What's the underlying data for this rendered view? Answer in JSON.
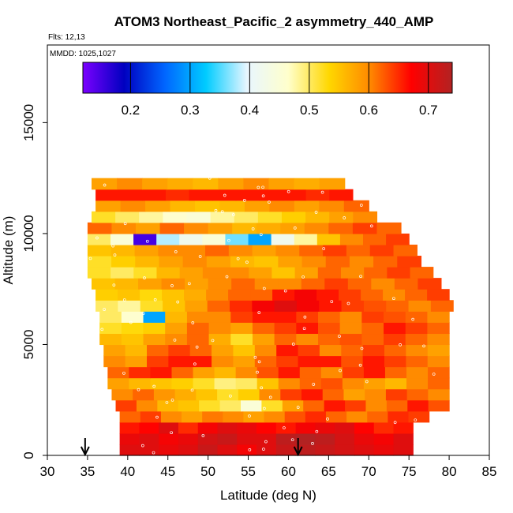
{
  "chart_data": {
    "type": "heatmap",
    "title": "ATOM3 Northeast_Pacific_2 asymmetry_440_AMP",
    "flights_label": "Flts: 12,13",
    "dates_label": "MMDD: 1025,1027",
    "xlabel": "Latitude (deg N)",
    "ylabel": "Altitude (m)",
    "xlim": [
      30,
      85
    ],
    "ylim": [
      0,
      18500
    ],
    "x_ticks": [
      30,
      35,
      40,
      45,
      50,
      55,
      60,
      65,
      70,
      75,
      80,
      85
    ],
    "y_ticks": [
      0,
      5000,
      10000,
      15000
    ],
    "colorbar": {
      "range": [
        0.12,
        0.74
      ],
      "ticks": [
        0.2,
        0.3,
        0.4,
        0.5,
        0.6,
        0.7
      ],
      "stops": [
        "#7b00ff",
        "#0000c0",
        "#0066ff",
        "#00ccff",
        "#e8f6ff",
        "#ffffcc",
        "#ffd700",
        "#ff8800",
        "#ff0000",
        "#b22222"
      ]
    },
    "bin_height_m": 500,
    "rows": [
      {
        "alt": 250,
        "lat_min": 39,
        "lat_max": 75.5,
        "values": [
          0.7,
          0.7,
          0.69,
          0.7,
          0.72,
          0.7,
          0.68,
          0.7,
          0.72,
          0.73,
          0.72,
          0.71,
          0.7,
          0.69,
          0.7
        ]
      },
      {
        "alt": 750,
        "lat_min": 39,
        "lat_max": 75.5,
        "values": [
          0.69,
          0.7,
          0.68,
          0.69,
          0.71,
          0.72,
          0.7,
          0.7,
          0.73,
          0.74,
          0.73,
          0.71,
          0.69,
          0.68,
          0.7
        ]
      },
      {
        "alt": 1250,
        "lat_min": 39,
        "lat_max": 75.5,
        "values": [
          0.66,
          0.67,
          0.7,
          0.65,
          0.68,
          0.7,
          0.69,
          0.67,
          0.66,
          0.68,
          0.69,
          0.7,
          0.67,
          0.65,
          0.66
        ]
      },
      {
        "alt": 1750,
        "lat_min": 39,
        "lat_max": 77.5,
        "values": [
          0.62,
          0.64,
          0.6,
          0.58,
          0.61,
          0.6,
          0.58,
          0.6,
          0.63,
          0.65,
          0.62,
          0.6,
          0.62,
          0.65,
          0.64
        ]
      },
      {
        "alt": 2250,
        "lat_min": 38.5,
        "lat_max": 80,
        "values": [
          0.64,
          0.6,
          0.56,
          0.55,
          0.52,
          0.5,
          0.45,
          0.52,
          0.58,
          0.62,
          0.66,
          0.64,
          0.6,
          0.62,
          0.66,
          0.63
        ]
      },
      {
        "alt": 2750,
        "lat_min": 38,
        "lat_max": 80,
        "values": [
          0.6,
          0.62,
          0.59,
          0.57,
          0.55,
          0.52,
          0.54,
          0.6,
          0.64,
          0.66,
          0.62,
          0.58,
          0.6,
          0.64,
          0.62,
          0.6
        ]
      },
      {
        "alt": 3250,
        "lat_min": 37.5,
        "lat_max": 80,
        "values": [
          0.58,
          0.56,
          0.55,
          0.54,
          0.52,
          0.49,
          0.5,
          0.55,
          0.6,
          0.62,
          0.63,
          0.6,
          0.58,
          0.56,
          0.6,
          0.62
        ]
      },
      {
        "alt": 3750,
        "lat_min": 37.5,
        "lat_max": 80,
        "values": [
          0.62,
          0.65,
          0.66,
          0.62,
          0.58,
          0.56,
          0.6,
          0.63,
          0.66,
          0.62,
          0.6,
          0.64,
          0.66,
          0.62,
          0.6,
          0.62
        ]
      },
      {
        "alt": 4250,
        "lat_min": 37,
        "lat_max": 80,
        "values": [
          0.6,
          0.58,
          0.64,
          0.66,
          0.66,
          0.6,
          0.58,
          0.62,
          0.64,
          0.66,
          0.66,
          0.63,
          0.66,
          0.64,
          0.62,
          0.6
        ]
      },
      {
        "alt": 4750,
        "lat_min": 37,
        "lat_max": 80,
        "values": [
          0.58,
          0.56,
          0.62,
          0.64,
          0.62,
          0.58,
          0.55,
          0.6,
          0.66,
          0.64,
          0.6,
          0.62,
          0.64,
          0.62,
          0.6,
          0.58
        ]
      },
      {
        "alt": 5250,
        "lat_min": 36.5,
        "lat_max": 80,
        "values": [
          0.56,
          0.55,
          0.58,
          0.6,
          0.62,
          0.57,
          0.52,
          0.58,
          0.62,
          0.6,
          0.62,
          0.63,
          0.62,
          0.64,
          0.62,
          0.6
        ]
      },
      {
        "alt": 5750,
        "lat_min": 36.5,
        "lat_max": 80,
        "values": [
          0.52,
          0.53,
          0.54,
          0.58,
          0.62,
          0.6,
          0.58,
          0.62,
          0.64,
          0.66,
          0.63,
          0.6,
          0.62,
          0.66,
          0.64,
          0.62
        ]
      },
      {
        "alt": 6250,
        "lat_min": 36.5,
        "lat_max": 80,
        "values": [
          0.5,
          0.46,
          0.3,
          0.56,
          0.6,
          0.6,
          0.64,
          0.66,
          0.66,
          0.64,
          0.62,
          0.6,
          0.64,
          0.63,
          0.62,
          0.6
        ]
      },
      {
        "alt": 6750,
        "lat_min": 36,
        "lat_max": 80.5,
        "values": [
          0.5,
          0.48,
          0.52,
          0.55,
          0.58,
          0.62,
          0.65,
          0.68,
          0.7,
          0.68,
          0.66,
          0.64,
          0.63,
          0.62,
          0.6,
          0.62
        ]
      },
      {
        "alt": 7250,
        "lat_min": 36,
        "lat_max": 80,
        "values": [
          0.54,
          0.55,
          0.53,
          0.55,
          0.57,
          0.6,
          0.62,
          0.62,
          0.66,
          0.68,
          0.66,
          0.64,
          0.62,
          0.6,
          0.62,
          0.64
        ]
      },
      {
        "alt": 7750,
        "lat_min": 35.5,
        "lat_max": 79,
        "values": [
          0.55,
          0.56,
          0.58,
          0.6,
          0.58,
          0.6,
          0.62,
          0.6,
          0.6,
          0.62,
          0.64,
          0.62,
          0.6,
          0.62,
          0.64
        ]
      },
      {
        "alt": 8250,
        "lat_min": 35,
        "lat_max": 78,
        "values": [
          0.52,
          0.5,
          0.52,
          0.56,
          0.58,
          0.6,
          0.6,
          0.58,
          0.55,
          0.58,
          0.62,
          0.6,
          0.62,
          0.64,
          0.62
        ]
      },
      {
        "alt": 8750,
        "lat_min": 35,
        "lat_max": 76.5,
        "values": [
          0.52,
          0.54,
          0.56,
          0.58,
          0.6,
          0.58,
          0.56,
          0.55,
          0.58,
          0.6,
          0.62,
          0.6,
          0.62,
          0.64
        ]
      },
      {
        "alt": 9250,
        "lat_min": 35,
        "lat_max": 76,
        "values": [
          0.55,
          0.56,
          0.58,
          0.6,
          0.6,
          0.62,
          0.6,
          0.58,
          0.6,
          0.62,
          0.64,
          0.62,
          0.64,
          0.62
        ]
      },
      {
        "alt": 9750,
        "lat_min": 35,
        "lat_max": 75,
        "values": [
          0.5,
          0.45,
          0.15,
          0.38,
          0.42,
          0.45,
          0.36,
          0.3,
          0.42,
          0.48,
          0.55,
          0.6,
          0.62,
          0.64
        ]
      },
      {
        "alt": 10250,
        "lat_min": 35,
        "lat_max": 74,
        "values": [
          0.62,
          0.6,
          0.58,
          0.62,
          0.6,
          0.58,
          0.56,
          0.57,
          0.58,
          0.6,
          0.62,
          0.64,
          0.62
        ]
      },
      {
        "alt": 10750,
        "lat_min": 35.5,
        "lat_max": 71,
        "values": [
          0.52,
          0.5,
          0.48,
          0.46,
          0.45,
          0.48,
          0.5,
          0.52,
          0.54,
          0.56,
          0.58,
          0.6
        ]
      },
      {
        "alt": 11250,
        "lat_min": 36,
        "lat_max": 70,
        "values": [
          0.58,
          0.6,
          0.58,
          0.56,
          0.55,
          0.56,
          0.58,
          0.6,
          0.58,
          0.6,
          0.62
        ]
      },
      {
        "alt": 11750,
        "lat_min": 36,
        "lat_max": 68,
        "values": [
          0.66,
          0.66,
          0.66,
          0.65,
          0.66,
          0.66,
          0.66,
          0.66,
          0.66,
          0.65,
          0.66
        ]
      },
      {
        "alt": 12250,
        "lat_min": 35.5,
        "lat_max": 67,
        "values": [
          0.58,
          0.6,
          0.58,
          0.57,
          0.56,
          0.58,
          0.6,
          0.58,
          0.57,
          0.58
        ]
      }
    ],
    "arrows": [
      {
        "lat": 34.7,
        "label": "down"
      },
      {
        "lat": 61.2,
        "label": "down"
      }
    ]
  }
}
